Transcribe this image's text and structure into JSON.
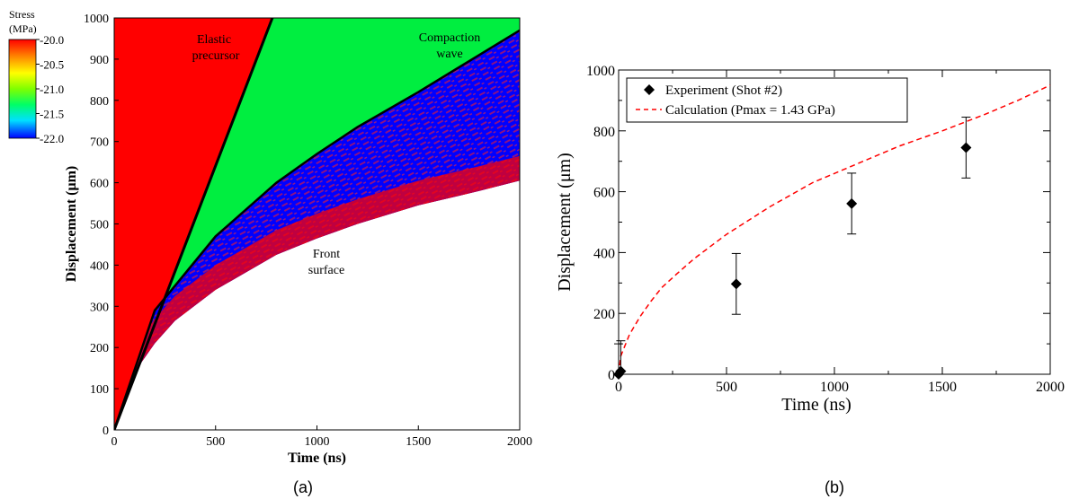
{
  "panel_a": {
    "caption": "(a)",
    "colorbar": {
      "title_line1": "Stress",
      "title_line2": "(MPa)",
      "colors": [
        "#ff0000",
        "#ff8c00",
        "#ffff00",
        "#7fff00",
        "#00ff66",
        "#00e0ff",
        "#0000ff"
      ],
      "ticks": [
        {
          "value": -20.0,
          "label": "-20.0"
        },
        {
          "value": -20.5,
          "label": "-20.5"
        },
        {
          "value": -21.0,
          "label": "-21.0"
        },
        {
          "value": -21.5,
          "label": "-21.5"
        },
        {
          "value": -22.0,
          "label": "-22.0"
        }
      ]
    },
    "annotations": {
      "elastic_line1": "Elastic",
      "elastic_line2": "precursor",
      "compaction_line1": "Compaction",
      "compaction_line2": "wave",
      "front_line1": "Front",
      "front_line2": "surface"
    }
  },
  "panel_b": {
    "caption": "(b)"
  },
  "chart_data": [
    {
      "type": "heatmap",
      "xlabel": "Time (ns)",
      "ylabel": "Displacement (μm)",
      "xlim": [
        0,
        2000
      ],
      "ylim": [
        0,
        1000
      ],
      "xticks": [
        0,
        500,
        1000,
        1500,
        2000
      ],
      "yticks": [
        0,
        100,
        200,
        300,
        400,
        500,
        600,
        700,
        800,
        900,
        1000
      ],
      "value_label": "Stress (MPa)",
      "value_range": [
        -22.0,
        -20.0
      ],
      "boundaries": [
        {
          "name": "Elastic precursor",
          "x": [
            0,
            780
          ],
          "y": [
            0,
            1000
          ]
        },
        {
          "name": "Compaction wave",
          "x": [
            0,
            200,
            500,
            800,
            1000,
            1200,
            1500,
            1800,
            2000
          ],
          "y": [
            0,
            290,
            470,
            600,
            670,
            735,
            820,
            910,
            970
          ]
        },
        {
          "name": "Front surface",
          "x": [
            0,
            100,
            200,
            300,
            500,
            800,
            1000,
            1200,
            1500,
            1800,
            2000
          ],
          "y": [
            0,
            140,
            210,
            265,
            340,
            425,
            465,
            500,
            545,
            580,
            605
          ]
        }
      ]
    },
    {
      "type": "scatter",
      "xlabel": "Time (ns)",
      "ylabel": "Displacement (μm)",
      "xlim": [
        0,
        2000
      ],
      "ylim": [
        0,
        1000
      ],
      "xticks": [
        0,
        500,
        1000,
        1500,
        2000
      ],
      "yticks": [
        0,
        200,
        400,
        600,
        800,
        1000
      ],
      "legend_position": "top-left",
      "series": [
        {
          "name": "Experiment (Shot #2)",
          "marker": "diamond",
          "color": "#000000",
          "x": [
            0,
            10,
            545,
            1080,
            1610
          ],
          "y": [
            0,
            10,
            297,
            561,
            745
          ],
          "error": [
            100,
            100,
            100,
            100,
            100
          ]
        },
        {
          "name": "Calculation (Pmax = 1.43 GPa)",
          "style": "dashed",
          "color": "#ff0000",
          "x": [
            0,
            10,
            50,
            100,
            150,
            200,
            270,
            350,
            500,
            700,
            900,
            1100,
            1300,
            1500,
            1700,
            1850,
            2000
          ],
          "y": [
            0,
            60,
            130,
            190,
            240,
            285,
            330,
            380,
            460,
            550,
            630,
            690,
            750,
            800,
            855,
            900,
            950
          ]
        }
      ]
    }
  ]
}
